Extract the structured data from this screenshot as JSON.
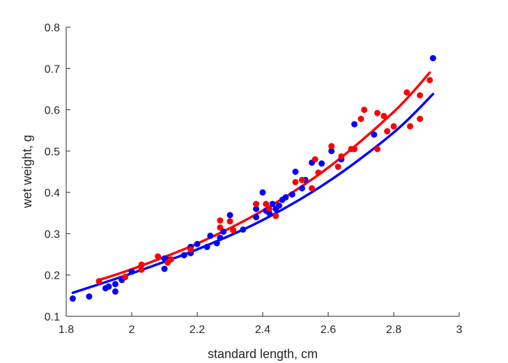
{
  "chart_data": {
    "type": "scatter",
    "title": "",
    "xlabel": "standard length, cm",
    "ylabel": "wet weight, g",
    "xlim": [
      1.8,
      3.0
    ],
    "ylim": [
      0.1,
      0.8
    ],
    "xticks": [
      "1.8",
      "2",
      "2.2",
      "2.4",
      "2.6",
      "2.8",
      "3"
    ],
    "yticks": [
      "0.1",
      "0.2",
      "0.3",
      "0.4",
      "0.5",
      "0.6",
      "0.7",
      "0.8"
    ],
    "grid": false,
    "legend": "none",
    "series": [
      {
        "color": "#0000ff",
        "points": [
          [
            1.82,
            0.143
          ],
          [
            1.87,
            0.148
          ],
          [
            1.92,
            0.168
          ],
          [
            1.93,
            0.172
          ],
          [
            1.95,
            0.16
          ],
          [
            1.95,
            0.178
          ],
          [
            1.97,
            0.188
          ],
          [
            2.0,
            0.208
          ],
          [
            2.1,
            0.215
          ],
          [
            2.1,
            0.24
          ],
          [
            2.11,
            0.237
          ],
          [
            2.16,
            0.248
          ],
          [
            2.18,
            0.253
          ],
          [
            2.18,
            0.268
          ],
          [
            2.2,
            0.275
          ],
          [
            2.23,
            0.268
          ],
          [
            2.24,
            0.295
          ],
          [
            2.26,
            0.277
          ],
          [
            2.27,
            0.29
          ],
          [
            2.28,
            0.305
          ],
          [
            2.3,
            0.345
          ],
          [
            2.34,
            0.31
          ],
          [
            2.38,
            0.34
          ],
          [
            2.38,
            0.36
          ],
          [
            2.4,
            0.4
          ],
          [
            2.41,
            0.356
          ],
          [
            2.42,
            0.35
          ],
          [
            2.43,
            0.372
          ],
          [
            2.44,
            0.36
          ],
          [
            2.45,
            0.368
          ],
          [
            2.46,
            0.382
          ],
          [
            2.47,
            0.388
          ],
          [
            2.49,
            0.395
          ],
          [
            2.5,
            0.45
          ],
          [
            2.52,
            0.41
          ],
          [
            2.53,
            0.43
          ],
          [
            2.55,
            0.472
          ],
          [
            2.58,
            0.47
          ],
          [
            2.61,
            0.5
          ],
          [
            2.64,
            0.48
          ],
          [
            2.68,
            0.565
          ],
          [
            2.74,
            0.54
          ],
          [
            2.92,
            0.725
          ]
        ],
        "fit_curve": [
          [
            1.82,
            0.157
          ],
          [
            2.0,
            0.204
          ],
          [
            2.2,
            0.262
          ],
          [
            2.4,
            0.333
          ],
          [
            2.6,
            0.426
          ],
          [
            2.8,
            0.545
          ],
          [
            2.92,
            0.638
          ]
        ]
      },
      {
        "color": "#ff0000",
        "points": [
          [
            1.9,
            0.185
          ],
          [
            1.98,
            0.195
          ],
          [
            2.03,
            0.213
          ],
          [
            2.03,
            0.225
          ],
          [
            2.08,
            0.245
          ],
          [
            2.11,
            0.23
          ],
          [
            2.12,
            0.238
          ],
          [
            2.18,
            0.262
          ],
          [
            2.27,
            0.315
          ],
          [
            2.27,
            0.332
          ],
          [
            2.3,
            0.33
          ],
          [
            2.31,
            0.308
          ],
          [
            2.38,
            0.372
          ],
          [
            2.41,
            0.372
          ],
          [
            2.42,
            0.36
          ],
          [
            2.44,
            0.343
          ],
          [
            2.5,
            0.425
          ],
          [
            2.52,
            0.43
          ],
          [
            2.55,
            0.41
          ],
          [
            2.56,
            0.48
          ],
          [
            2.57,
            0.448
          ],
          [
            2.61,
            0.512
          ],
          [
            2.63,
            0.462
          ],
          [
            2.64,
            0.487
          ],
          [
            2.67,
            0.505
          ],
          [
            2.68,
            0.505
          ],
          [
            2.7,
            0.578
          ],
          [
            2.71,
            0.6
          ],
          [
            2.75,
            0.505
          ],
          [
            2.75,
            0.592
          ],
          [
            2.77,
            0.585
          ],
          [
            2.78,
            0.548
          ],
          [
            2.8,
            0.56
          ],
          [
            2.84,
            0.642
          ],
          [
            2.85,
            0.56
          ],
          [
            2.88,
            0.578
          ],
          [
            2.88,
            0.635
          ],
          [
            2.91,
            0.672
          ]
        ],
        "fit_curve": [
          [
            1.9,
            0.188
          ],
          [
            2.0,
            0.214
          ],
          [
            2.2,
            0.276
          ],
          [
            2.4,
            0.356
          ],
          [
            2.6,
            0.46
          ],
          [
            2.8,
            0.595
          ],
          [
            2.91,
            0.69
          ]
        ]
      }
    ]
  }
}
